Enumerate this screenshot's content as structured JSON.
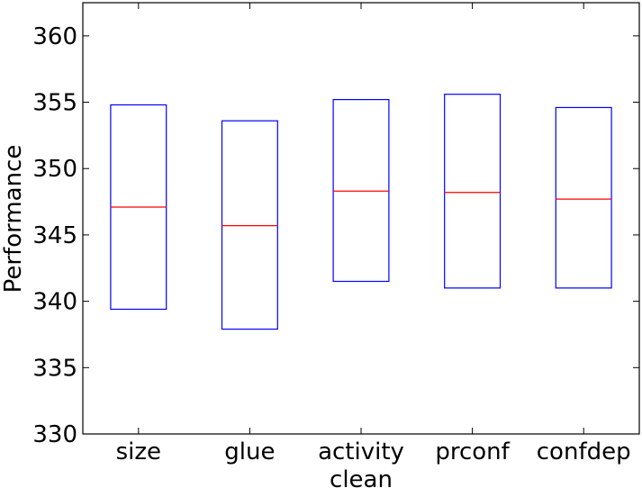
{
  "chart_data": {
    "type": "box",
    "title": "",
    "xlabel": "",
    "ylabel": "Performance",
    "ylim": [
      330,
      362.5
    ],
    "yticks": [
      330,
      335,
      340,
      345,
      350,
      355,
      360
    ],
    "grid": false,
    "categories": [
      "size",
      "glue",
      "activity\nclean",
      "prconf",
      "confdep"
    ],
    "boxes": [
      {
        "label": "size",
        "q1": 339.4,
        "median": 347.1,
        "q3": 354.8
      },
      {
        "label": "glue",
        "q1": 337.9,
        "median": 345.7,
        "q3": 353.6
      },
      {
        "label": "activity\nclean",
        "q1": 341.5,
        "median": 348.3,
        "q3": 355.2
      },
      {
        "label": "prconf",
        "q1": 341.0,
        "median": 348.2,
        "q3": 355.6
      },
      {
        "label": "confdep",
        "q1": 341.0,
        "median": 347.7,
        "q3": 354.6
      }
    ],
    "colors": {
      "box": "#0000ff",
      "median": "#ff0000",
      "axes": "#000000"
    }
  }
}
